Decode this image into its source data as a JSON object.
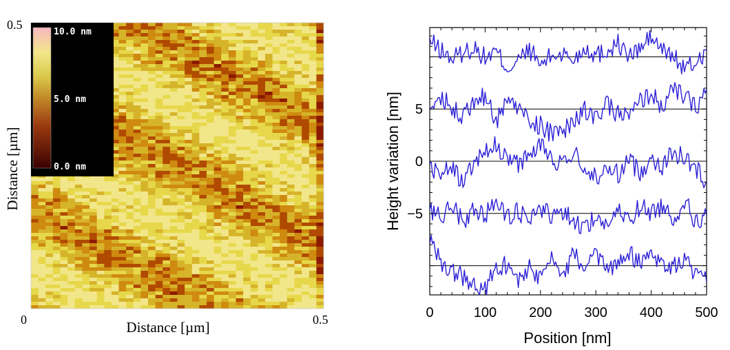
{
  "chart_data": [
    {
      "type": "heatmap",
      "xlabel": "Distance [µm]",
      "ylabel": "Distance [µm]",
      "xlim": [
        0,
        0.5
      ],
      "ylim": [
        0,
        0.5
      ],
      "x_ticks": [
        "0",
        "0.5"
      ],
      "y_ticks": [
        "0.5"
      ],
      "colorbar": {
        "labels": [
          "10.0 nm",
          "5.0 nm",
          "0.0 nm"
        ],
        "range": [
          0,
          10
        ],
        "unit": "nm"
      },
      "colors": [
        "#5a0000",
        "#8c1a00",
        "#b04a00",
        "#cf8a10",
        "#d6b42a",
        "#e6d84a",
        "#f2e68a",
        "#f8b7c0"
      ]
    },
    {
      "type": "line",
      "xlabel": "Position  [nm]",
      "ylabel": "Height variation  [nm]",
      "xlim": [
        0,
        500
      ],
      "ylim": [
        -12.8,
        12.8
      ],
      "x_ticks": [
        "0",
        "100",
        "200",
        "300",
        "400",
        "500"
      ],
      "y_ticks": [
        "5",
        "0",
        "−5"
      ],
      "baselines": [
        10,
        5,
        0,
        -5,
        -10
      ],
      "line_color": "#2b1fd6",
      "series_note": "five stacked roughness profiles offset by 5 nm",
      "series": [
        {
          "offset": 10,
          "x": [
            0,
            20,
            40,
            60,
            80,
            100,
            120,
            140,
            160,
            180,
            200,
            220,
            240,
            260,
            280,
            300,
            320,
            340,
            360,
            380,
            400,
            420,
            440,
            460,
            480,
            500
          ],
          "y": [
            11.5,
            10.6,
            9.8,
            10.4,
            10.9,
            9.9,
            10.5,
            8.9,
            9.6,
            10.7,
            9.2,
            10.1,
            10.3,
            9.7,
            10.9,
            10.2,
            10.6,
            11.3,
            10.0,
            10.8,
            11.9,
            10.6,
            10.1,
            8.8,
            9.4,
            10.7
          ]
        },
        {
          "offset": 5,
          "x": [
            0,
            20,
            40,
            60,
            80,
            100,
            120,
            140,
            160,
            180,
            200,
            220,
            240,
            260,
            280,
            300,
            320,
            340,
            360,
            380,
            400,
            420,
            440,
            460,
            480,
            500
          ],
          "y": [
            4.8,
            6.2,
            5.3,
            4.4,
            5.6,
            6.3,
            3.7,
            6.1,
            5.0,
            3.9,
            3.4,
            2.6,
            2.9,
            3.6,
            4.9,
            4.1,
            5.3,
            4.6,
            4.2,
            5.7,
            6.5,
            5.2,
            6.8,
            6.2,
            5.1,
            6.9
          ]
        },
        {
          "offset": 0,
          "x": [
            0,
            20,
            40,
            60,
            80,
            100,
            120,
            140,
            160,
            180,
            200,
            220,
            240,
            260,
            280,
            300,
            320,
            340,
            360,
            380,
            400,
            420,
            440,
            460,
            480,
            500
          ],
          "y": [
            -0.3,
            -1.4,
            -0.6,
            -2.1,
            -0.1,
            0.8,
            1.5,
            0.5,
            -0.4,
            0.9,
            1.8,
            0.3,
            -0.6,
            0.7,
            -0.5,
            -1.6,
            -0.8,
            -1.2,
            0.1,
            -1.1,
            0.4,
            -0.5,
            0.9,
            0.3,
            -0.7,
            -1.9
          ]
        },
        {
          "offset": -5,
          "x": [
            0,
            20,
            40,
            60,
            80,
            100,
            120,
            140,
            160,
            180,
            200,
            220,
            240,
            260,
            280,
            300,
            320,
            340,
            360,
            380,
            400,
            420,
            440,
            460,
            480,
            500
          ],
          "y": [
            -4.6,
            -5.3,
            -4.1,
            -5.8,
            -4.5,
            -5.1,
            -3.9,
            -5.5,
            -4.8,
            -6.0,
            -4.4,
            -5.2,
            -4.7,
            -5.9,
            -6.2,
            -5.4,
            -6.1,
            -4.9,
            -5.6,
            -4.3,
            -5.0,
            -4.2,
            -5.5,
            -3.8,
            -5.8,
            -5.2
          ]
        },
        {
          "offset": -10,
          "x": [
            0,
            20,
            40,
            60,
            80,
            100,
            120,
            140,
            160,
            180,
            200,
            220,
            240,
            260,
            280,
            300,
            320,
            340,
            360,
            380,
            400,
            420,
            440,
            460,
            480,
            500
          ],
          "y": [
            -7.8,
            -9.5,
            -10.6,
            -11.1,
            -11.8,
            -12.2,
            -10.4,
            -9.8,
            -11.3,
            -10.2,
            -11.0,
            -9.6,
            -10.8,
            -8.9,
            -10.3,
            -9.1,
            -10.5,
            -9.4,
            -8.8,
            -9.7,
            -8.5,
            -9.9,
            -10.2,
            -9.3,
            -10.9,
            -11.6
          ]
        }
      ]
    }
  ]
}
